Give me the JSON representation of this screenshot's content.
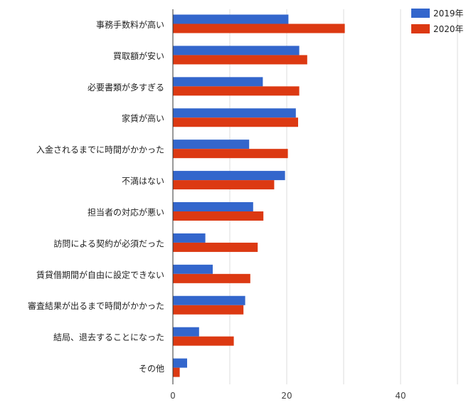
{
  "chart_data": {
    "type": "bar",
    "orientation": "horizontal",
    "categories": [
      "事務手数料が高い",
      "買取額が安い",
      "必要書類が多すぎる",
      "家賃が高い",
      "入金されるまでに時間がかかった",
      "不満はない",
      "担当者の対応が悪い",
      "訪問による契約が必須だった",
      "賃貸借期間が自由に設定できない",
      "審査結果が出るまで時間がかかった",
      "結局、退去することになった",
      "その他"
    ],
    "series": [
      {
        "name": "2019年",
        "color": "#3366cc",
        "values": [
          20.3,
          22.2,
          15.8,
          21.6,
          13.4,
          19.7,
          14.1,
          5.7,
          7.0,
          12.7,
          4.6,
          2.5
        ]
      },
      {
        "name": "2020年",
        "color": "#dc3912",
        "values": [
          30.2,
          23.6,
          22.2,
          22.0,
          20.2,
          17.8,
          15.9,
          14.9,
          13.6,
          12.4,
          10.7,
          1.2
        ]
      }
    ],
    "xticks": [
      "0",
      "20",
      "40"
    ],
    "xlim": [
      0,
      53
    ],
    "grid": true,
    "legend_position": "top-right"
  }
}
